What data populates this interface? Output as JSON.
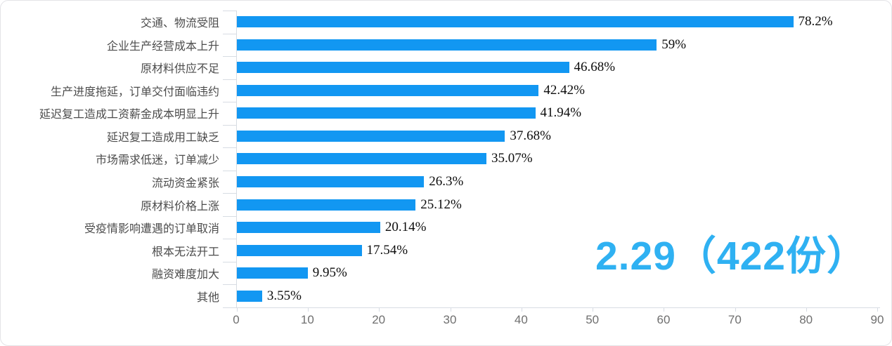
{
  "chart_data": {
    "type": "bar",
    "orientation": "horizontal",
    "title": "",
    "xlabel": "",
    "ylabel": "",
    "categories": [
      "交通、物流受阻",
      "企业生产经营成本上升",
      "原材料供应不足",
      "生产进度拖延，订单交付面临违约",
      "延迟复工造成工资薪金成本明显上升",
      "延迟复工造成用工缺乏",
      "市场需求低迷，订单减少",
      "流动资金紧张",
      "原材料价格上涨",
      "受疫情影响遭遇的订单取消",
      "根本无法开工",
      "融资难度加大",
      "其他"
    ],
    "values": [
      78.2,
      59,
      46.68,
      42.42,
      41.94,
      37.68,
      35.07,
      26.3,
      25.12,
      20.14,
      17.54,
      9.95,
      3.55
    ],
    "value_labels": [
      "78.2%",
      "59%",
      "46.68%",
      "42.42%",
      "41.94%",
      "37.68%",
      "35.07%",
      "26.3%",
      "25.12%",
      "20.14%",
      "17.54%",
      "9.95%",
      "3.55%"
    ],
    "x_ticks": [
      "0",
      "10",
      "20",
      "30",
      "40",
      "50",
      "60",
      "70",
      "80",
      "90"
    ],
    "xlim": [
      0,
      90
    ],
    "grid": false,
    "legend_position": "none",
    "bar_color": "#1297f2"
  },
  "annotation": {
    "watermark_text": "2.29（422份）"
  },
  "colors": {
    "background": "#ffffff",
    "card_border": "#e3e3e7",
    "axis": "#d7dce3",
    "bar": "#1297f2",
    "category_text": "#4c4c4c",
    "tick_text": "#6f6f6f",
    "value_text": "#0d0d0d",
    "watermark": "#2fb1f2"
  }
}
